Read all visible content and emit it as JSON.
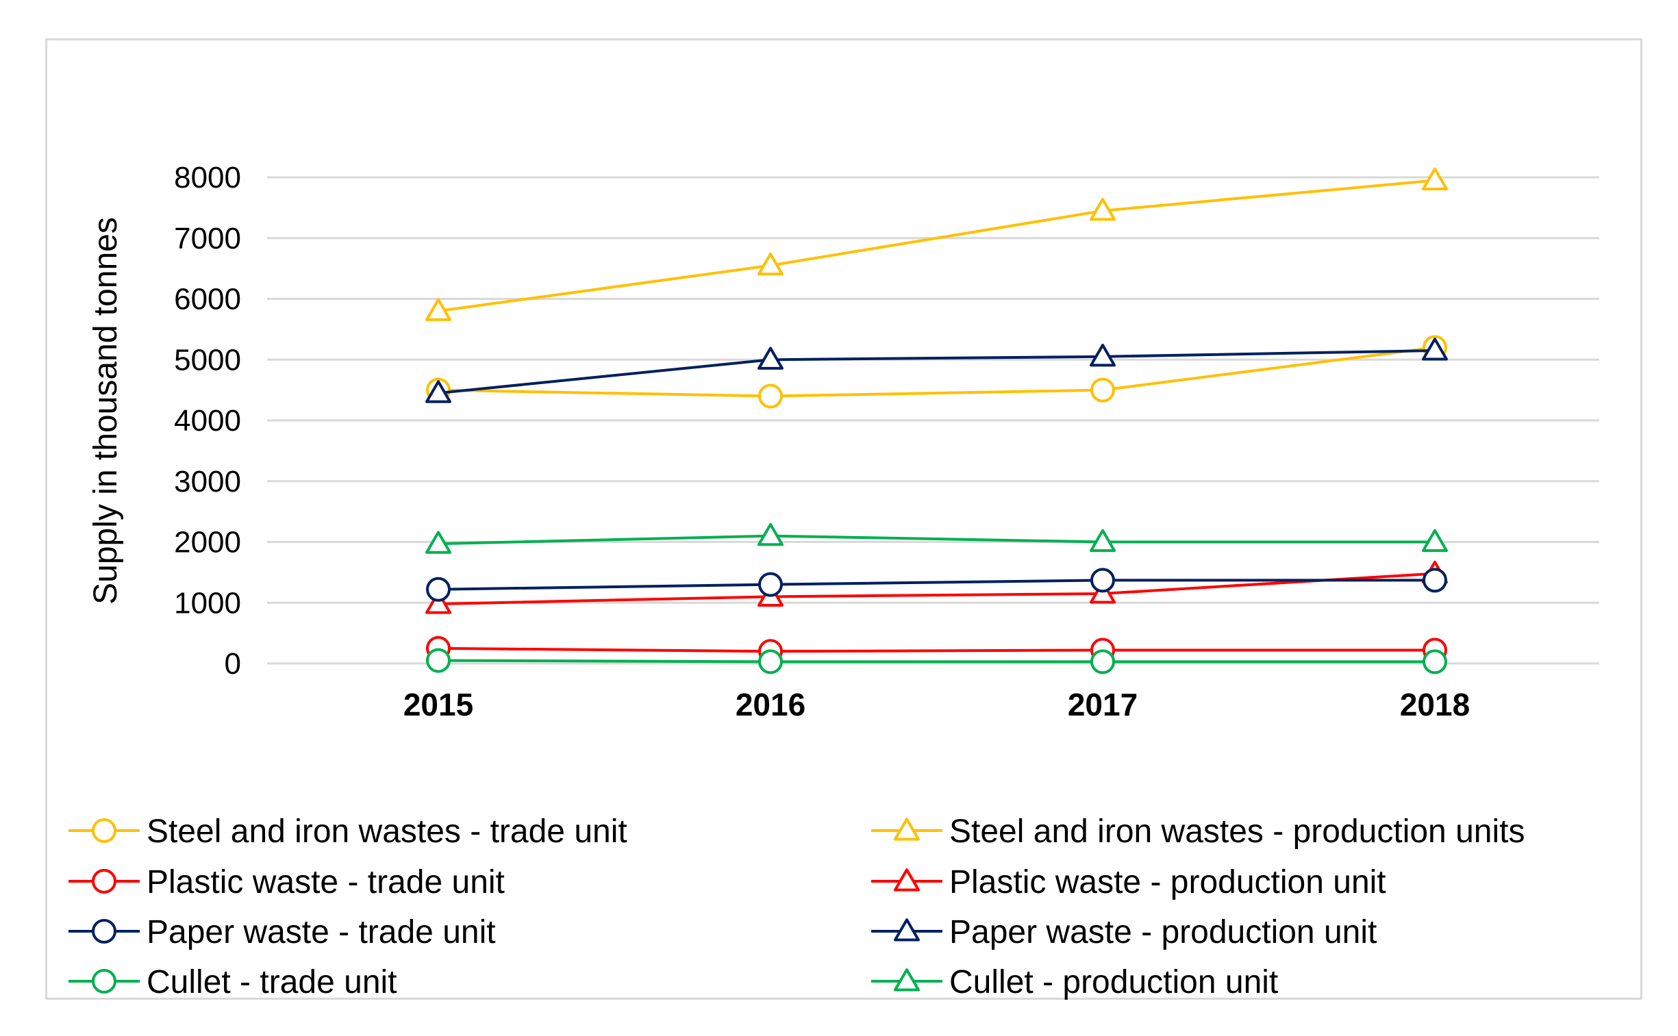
{
  "chart_data": {
    "type": "line",
    "title": "",
    "xlabel": "",
    "ylabel": "Supply in thousand tonnes",
    "x": [
      "2015",
      "2016",
      "2017",
      "2018"
    ],
    "ylim": [
      0,
      8000
    ],
    "yticks": [
      "0",
      "1000",
      "2000",
      "3000",
      "4000",
      "5000",
      "6000",
      "7000",
      "8000"
    ],
    "grid": true,
    "legend_position": "bottom",
    "series": [
      {
        "name": "Steel and iron wastes - trade unit",
        "values": [
          4500,
          4400,
          4500,
          5200
        ],
        "color": "#ffc000",
        "marker": "circle"
      },
      {
        "name": "Steel and iron wastes - production units",
        "values": [
          5800,
          6550,
          7450,
          7950
        ],
        "color": "#ffc000",
        "marker": "triangle"
      },
      {
        "name": "Plastic waste - trade unit",
        "values": [
          250,
          200,
          220,
          220
        ],
        "color": "#ff0000",
        "marker": "circle"
      },
      {
        "name": "Plastic waste - production unit",
        "values": [
          980,
          1100,
          1150,
          1480
        ],
        "color": "#ff0000",
        "marker": "triangle"
      },
      {
        "name": "Paper waste - trade unit",
        "values": [
          1220,
          1300,
          1370,
          1370
        ],
        "color": "#002060",
        "marker": "circle"
      },
      {
        "name": "Paper waste - production unit",
        "values": [
          4450,
          5000,
          5050,
          5150
        ],
        "color": "#002060",
        "marker": "triangle"
      },
      {
        "name": "Cullet - trade unit",
        "values": [
          50,
          30,
          30,
          30
        ],
        "color": "#00b050",
        "marker": "circle"
      },
      {
        "name": "Cullet - production unit",
        "values": [
          1970,
          2100,
          2000,
          2000
        ],
        "color": "#00b050",
        "marker": "triangle"
      }
    ]
  }
}
